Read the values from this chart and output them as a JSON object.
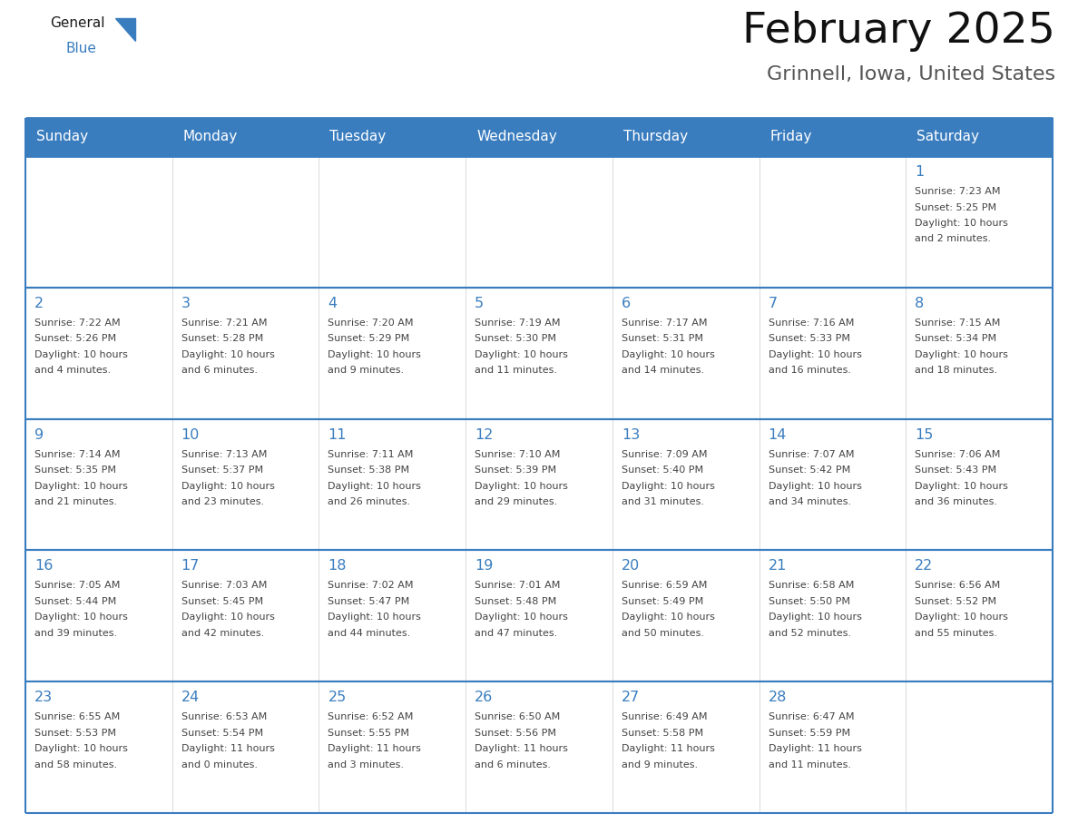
{
  "title": "February 2025",
  "subtitle": "Grinnell, Iowa, United States",
  "days_of_week": [
    "Sunday",
    "Monday",
    "Tuesday",
    "Wednesday",
    "Thursday",
    "Friday",
    "Saturday"
  ],
  "header_bg": "#3a7dbf",
  "header_text": "#ffffff",
  "cell_bg": "#ffffff",
  "border_color": "#3a7dbf",
  "row_border_color": "#5a9fd4",
  "day_num_color": "#3a7dbf",
  "text_color": "#444444",
  "logo_general_color": "#1a1a1a",
  "logo_blue_color": "#3a7dbf",
  "calendar_data": [
    [
      {
        "day": null,
        "info": ""
      },
      {
        "day": null,
        "info": ""
      },
      {
        "day": null,
        "info": ""
      },
      {
        "day": null,
        "info": ""
      },
      {
        "day": null,
        "info": ""
      },
      {
        "day": null,
        "info": ""
      },
      {
        "day": 1,
        "info": "Sunrise: 7:23 AM\nSunset: 5:25 PM\nDaylight: 10 hours\nand 2 minutes."
      }
    ],
    [
      {
        "day": 2,
        "info": "Sunrise: 7:22 AM\nSunset: 5:26 PM\nDaylight: 10 hours\nand 4 minutes."
      },
      {
        "day": 3,
        "info": "Sunrise: 7:21 AM\nSunset: 5:28 PM\nDaylight: 10 hours\nand 6 minutes."
      },
      {
        "day": 4,
        "info": "Sunrise: 7:20 AM\nSunset: 5:29 PM\nDaylight: 10 hours\nand 9 minutes."
      },
      {
        "day": 5,
        "info": "Sunrise: 7:19 AM\nSunset: 5:30 PM\nDaylight: 10 hours\nand 11 minutes."
      },
      {
        "day": 6,
        "info": "Sunrise: 7:17 AM\nSunset: 5:31 PM\nDaylight: 10 hours\nand 14 minutes."
      },
      {
        "day": 7,
        "info": "Sunrise: 7:16 AM\nSunset: 5:33 PM\nDaylight: 10 hours\nand 16 minutes."
      },
      {
        "day": 8,
        "info": "Sunrise: 7:15 AM\nSunset: 5:34 PM\nDaylight: 10 hours\nand 18 minutes."
      }
    ],
    [
      {
        "day": 9,
        "info": "Sunrise: 7:14 AM\nSunset: 5:35 PM\nDaylight: 10 hours\nand 21 minutes."
      },
      {
        "day": 10,
        "info": "Sunrise: 7:13 AM\nSunset: 5:37 PM\nDaylight: 10 hours\nand 23 minutes."
      },
      {
        "day": 11,
        "info": "Sunrise: 7:11 AM\nSunset: 5:38 PM\nDaylight: 10 hours\nand 26 minutes."
      },
      {
        "day": 12,
        "info": "Sunrise: 7:10 AM\nSunset: 5:39 PM\nDaylight: 10 hours\nand 29 minutes."
      },
      {
        "day": 13,
        "info": "Sunrise: 7:09 AM\nSunset: 5:40 PM\nDaylight: 10 hours\nand 31 minutes."
      },
      {
        "day": 14,
        "info": "Sunrise: 7:07 AM\nSunset: 5:42 PM\nDaylight: 10 hours\nand 34 minutes."
      },
      {
        "day": 15,
        "info": "Sunrise: 7:06 AM\nSunset: 5:43 PM\nDaylight: 10 hours\nand 36 minutes."
      }
    ],
    [
      {
        "day": 16,
        "info": "Sunrise: 7:05 AM\nSunset: 5:44 PM\nDaylight: 10 hours\nand 39 minutes."
      },
      {
        "day": 17,
        "info": "Sunrise: 7:03 AM\nSunset: 5:45 PM\nDaylight: 10 hours\nand 42 minutes."
      },
      {
        "day": 18,
        "info": "Sunrise: 7:02 AM\nSunset: 5:47 PM\nDaylight: 10 hours\nand 44 minutes."
      },
      {
        "day": 19,
        "info": "Sunrise: 7:01 AM\nSunset: 5:48 PM\nDaylight: 10 hours\nand 47 minutes."
      },
      {
        "day": 20,
        "info": "Sunrise: 6:59 AM\nSunset: 5:49 PM\nDaylight: 10 hours\nand 50 minutes."
      },
      {
        "day": 21,
        "info": "Sunrise: 6:58 AM\nSunset: 5:50 PM\nDaylight: 10 hours\nand 52 minutes."
      },
      {
        "day": 22,
        "info": "Sunrise: 6:56 AM\nSunset: 5:52 PM\nDaylight: 10 hours\nand 55 minutes."
      }
    ],
    [
      {
        "day": 23,
        "info": "Sunrise: 6:55 AM\nSunset: 5:53 PM\nDaylight: 10 hours\nand 58 minutes."
      },
      {
        "day": 24,
        "info": "Sunrise: 6:53 AM\nSunset: 5:54 PM\nDaylight: 11 hours\nand 0 minutes."
      },
      {
        "day": 25,
        "info": "Sunrise: 6:52 AM\nSunset: 5:55 PM\nDaylight: 11 hours\nand 3 minutes."
      },
      {
        "day": 26,
        "info": "Sunrise: 6:50 AM\nSunset: 5:56 PM\nDaylight: 11 hours\nand 6 minutes."
      },
      {
        "day": 27,
        "info": "Sunrise: 6:49 AM\nSunset: 5:58 PM\nDaylight: 11 hours\nand 9 minutes."
      },
      {
        "day": 28,
        "info": "Sunrise: 6:47 AM\nSunset: 5:59 PM\nDaylight: 11 hours\nand 11 minutes."
      },
      {
        "day": null,
        "info": ""
      }
    ]
  ]
}
